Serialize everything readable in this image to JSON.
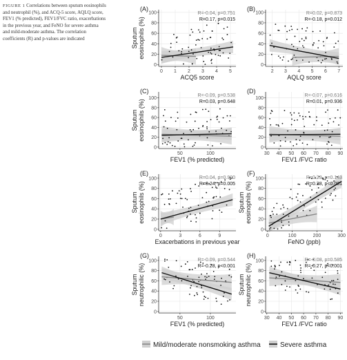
{
  "caption": {
    "label": "FIGURE 1",
    "text": "Correlations between sputum eosinophils and neutrophil (%), and ACQ-5 score, AQLQ score, FEV1 (% predicted), FEV1/FVC ratio, exacerbations in the previous year, and FeNO for severe asthma and mild-moderate asthma. The correlation coefficients (R) and p-values are indicated"
  },
  "legend": {
    "items": [
      {
        "label": "Mild/moderate nonsmoking asthma",
        "color": "#888888"
      },
      {
        "label": "Severe asthma",
        "color": "#111111"
      }
    ]
  },
  "colors": {
    "mild_line": "#888888",
    "severe_line": "#111111",
    "band": "#cfcfcf",
    "points": "#111111"
  },
  "chart_data": [
    {
      "panel": "(A)",
      "type": "scatter",
      "xlabel": "ACQ5 score",
      "ylabel": [
        "Sputum",
        "eosinophils (%)"
      ],
      "xlim": [
        -0.2,
        5.4
      ],
      "ylim": [
        -3,
        105
      ],
      "xticks": [
        0,
        1,
        2,
        3,
        4,
        5
      ],
      "yticks": [
        0,
        20,
        40,
        60,
        80,
        100
      ],
      "stats": [
        {
          "series": "Mild/moderate nonsmoking asthma",
          "text": "R=-0.04, p=0.751"
        },
        {
          "series": "Severe asthma",
          "text": "R=0.17, p=0.015"
        }
      ],
      "fits": [
        {
          "series": "Mild/moderate nonsmoking asthma",
          "x": [
            0,
            2.5
          ],
          "y": [
            18,
            16
          ]
        },
        {
          "series": "Severe asthma",
          "x": [
            0,
            5.2
          ],
          "y": [
            14,
            34
          ]
        }
      ]
    },
    {
      "panel": "(B)",
      "type": "scatter",
      "xlabel": "AQLQ score",
      "ylabel": [],
      "xlim": [
        1.5,
        7.3
      ],
      "ylim": [
        -3,
        105
      ],
      "xticks": [
        2,
        3,
        4,
        5,
        6,
        7
      ],
      "yticks": [
        0,
        20,
        40,
        60,
        80,
        100
      ],
      "stats": [
        {
          "series": "Mild/moderate nonsmoking asthma",
          "text": "R=0.02, p=0.873"
        },
        {
          "series": "Severe asthma",
          "text": "R=-0.18, p=0.012"
        }
      ],
      "fits": [
        {
          "series": "Mild/moderate nonsmoking asthma",
          "x": [
            3.5,
            7.0
          ],
          "y": [
            14,
            16
          ]
        },
        {
          "series": "Severe asthma",
          "x": [
            1.8,
            7.0
          ],
          "y": [
            37,
            12
          ]
        }
      ]
    },
    {
      "panel": "(C)",
      "type": "scatter",
      "xlabel": "FEV1  (% predicted)",
      "ylabel": [
        "Sputum",
        "eosinophils (%)"
      ],
      "xlim": [
        15,
        142
      ],
      "ylim": [
        -3,
        112
      ],
      "xticks": [
        50,
        100
      ],
      "yticks": [
        0,
        20,
        40,
        60,
        80,
        100
      ],
      "stats": [
        {
          "series": "Mild/moderate nonsmoking asthma",
          "text": "R=-0.09, p=0.538"
        },
        {
          "series": "Severe asthma",
          "text": "R=0.03, p=0.648"
        }
      ],
      "fits": [
        {
          "series": "Mild/moderate nonsmoking asthma",
          "x": [
            20,
            135
          ],
          "y": [
            26,
            22
          ]
        },
        {
          "series": "Severe asthma",
          "x": [
            20,
            135
          ],
          "y": [
            24,
            27
          ]
        }
      ]
    },
    {
      "panel": "(D)",
      "type": "scatter",
      "xlabel": "FEV1 /FVC ratio",
      "ylabel": [],
      "xlim": [
        29,
        92
      ],
      "ylim": [
        -3,
        112
      ],
      "xticks": [
        30,
        40,
        50,
        60,
        70,
        80,
        90
      ],
      "yticks": [
        0,
        20,
        40,
        60,
        80,
        100
      ],
      "stats": [
        {
          "series": "Mild/moderate nonsmoking asthma",
          "text": "R=-0.07, p=0.616"
        },
        {
          "series": "Severe asthma",
          "text": "R=0.01, p=0.936"
        }
      ],
      "fits": [
        {
          "series": "Mild/moderate nonsmoking asthma",
          "x": [
            32,
            90
          ],
          "y": [
            26,
            22
          ]
        },
        {
          "series": "Severe asthma",
          "x": [
            32,
            90
          ],
          "y": [
            25,
            26
          ]
        }
      ]
    },
    {
      "panel": "(E)",
      "type": "scatter",
      "xlabel": "Exacerbations in previous year",
      "ylabel": [
        "Sputum",
        "eosinophils (%)"
      ],
      "xlim": [
        -0.3,
        11.5
      ],
      "ylim": [
        -3,
        108
      ],
      "xticks": [
        0,
        3,
        6,
        9
      ],
      "yticks": [
        0,
        20,
        40,
        60,
        80,
        100
      ],
      "stats": [
        {
          "series": "Mild/moderate nonsmoking asthma",
          "text": "R=0.04, p=0.900"
        },
        {
          "series": "Severe asthma",
          "text": "R=0.24, p=0.005"
        }
      ],
      "fits": [
        {
          "series": "Mild/moderate nonsmoking asthma",
          "x": [
            0,
            2
          ],
          "y": [
            20,
            24
          ]
        },
        {
          "series": "Severe asthma",
          "x": [
            0,
            11
          ],
          "y": [
            20,
            58
          ]
        }
      ]
    },
    {
      "panel": "(F)",
      "type": "scatter",
      "xlabel": "FeNO (ppb)",
      "ylabel": [
        "Sputum",
        "eosinophils (%)"
      ],
      "xlim": [
        -8,
        305
      ],
      "ylim": [
        -3,
        108
      ],
      "xticks": [
        0,
        100,
        200,
        300
      ],
      "yticks": [
        0,
        20,
        40,
        60,
        80,
        100
      ],
      "stats": [
        {
          "series": "Mild/moderate nonsmoking asthma",
          "text": "R=0.23, p=0.143"
        },
        {
          "series": "Severe asthma",
          "text": "R=0.38, p<0.001"
        }
      ],
      "fits": [
        {
          "series": "Mild/moderate nonsmoking asthma",
          "x": [
            5,
            200
          ],
          "y": [
            12,
            30
          ]
        },
        {
          "series": "Severe asthma",
          "x": [
            5,
            300
          ],
          "y": [
            6,
            94
          ]
        }
      ]
    },
    {
      "panel": "(G)",
      "type": "scatter",
      "xlabel": "FEV1  (% predicted)",
      "ylabel": [
        "Sputum",
        "neutrophilic (%)"
      ],
      "xlim": [
        15,
        142
      ],
      "ylim": [
        -3,
        108
      ],
      "xticks": [
        50,
        100
      ],
      "yticks": [
        0,
        20,
        40,
        60,
        80,
        100
      ],
      "stats": [
        {
          "series": "Mild/moderate nonsmoking asthma",
          "text": "R=-0.09, p=0.544"
        },
        {
          "series": "Severe asthma",
          "text": "R=-0.28, p<0.001"
        }
      ],
      "fits": [
        {
          "series": "Mild/moderate nonsmoking asthma",
          "x": [
            20,
            135
          ],
          "y": [
            68,
            57
          ]
        },
        {
          "series": "Severe asthma",
          "x": [
            20,
            135
          ],
          "y": [
            76,
            34
          ]
        }
      ]
    },
    {
      "panel": "(H)",
      "type": "scatter",
      "xlabel": "FEV1 /FVC ratio",
      "ylabel": [
        "Sputum",
        "neutrophilic (%)"
      ],
      "xlim": [
        29,
        92
      ],
      "ylim": [
        -3,
        108
      ],
      "xticks": [
        30,
        40,
        50,
        60,
        70,
        80,
        90
      ],
      "yticks": [
        0,
        20,
        40,
        60,
        80,
        100
      ],
      "stats": [
        {
          "series": "Mild/moderate nonsmoking asthma",
          "text": "R=-0.08, p=0.585"
        },
        {
          "series": "Severe asthma",
          "text": "R=-0.27, p<0.001"
        }
      ],
      "fits": [
        {
          "series": "Mild/moderate nonsmoking asthma",
          "x": [
            32,
            90
          ],
          "y": [
            66,
            57
          ]
        },
        {
          "series": "Severe asthma",
          "x": [
            32,
            90
          ],
          "y": [
            76,
            44
          ]
        }
      ]
    }
  ]
}
